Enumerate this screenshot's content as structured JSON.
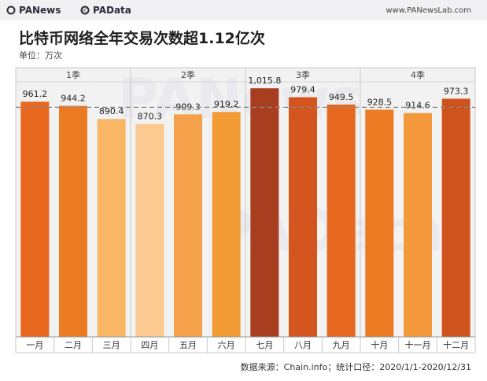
{
  "header": {
    "brand_left": "PANews",
    "separator": "×",
    "brand_right": "PAData",
    "site": "www.PANewsLab.com"
  },
  "icons": [
    "panews-logo-icon",
    "padata-logo-icon"
  ],
  "watermarks": [
    "PANews",
    "PAData"
  ],
  "chart_data": {
    "type": "bar",
    "title": "比特币网络全年交易次数超1.12亿次",
    "unit": "单位：万次",
    "source": "数据来源：Chain.info；统计口径：2020/1/1-2020/12/31",
    "categories": [
      "一月",
      "二月",
      "三月",
      "四月",
      "五月",
      "六月",
      "七月",
      "八月",
      "九月",
      "十月",
      "十一月",
      "十二月"
    ],
    "values": [
      961.2,
      944.2,
      890.4,
      870.3,
      909.3,
      919.2,
      1015.8,
      979.4,
      949.5,
      928.5,
      914.6,
      973.3
    ],
    "value_labels": [
      "961.2",
      "944.2",
      "890.4",
      "870.3",
      "909.3",
      "919.2",
      "1,015.8",
      "979.4",
      "949.5",
      "928.5",
      "914.6",
      "973.3"
    ],
    "colors": [
      "#e8681f",
      "#ec7a22",
      "#f9b766",
      "#fcc990",
      "#f5a04a",
      "#f39c35",
      "#a93d1f",
      "#d4551d",
      "#e8681f",
      "#ec7a22",
      "#f59a3c",
      "#cf531f"
    ],
    "groups": [
      {
        "label": "1季",
        "start": 0,
        "end": 2
      },
      {
        "label": "2季",
        "start": 3,
        "end": 5
      },
      {
        "label": "3季",
        "start": 6,
        "end": 8
      },
      {
        "label": "4季",
        "start": 9,
        "end": 11
      }
    ],
    "average_line": 938,
    "ylim": [
      0,
      1100
    ],
    "grid": false,
    "legend": "none"
  }
}
